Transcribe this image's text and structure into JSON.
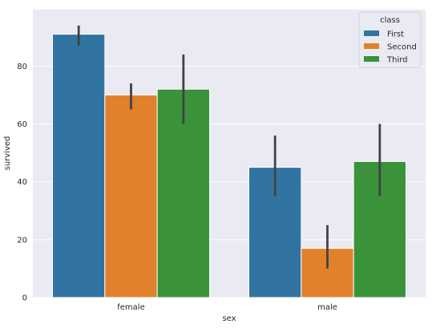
{
  "chart_data": {
    "type": "bar",
    "title": "",
    "xlabel": "sex",
    "ylabel": "survived",
    "categories": [
      "female",
      "male"
    ],
    "series": [
      {
        "name": "First",
        "color": "#3274a1",
        "values": [
          91,
          45
        ],
        "err_low": [
          87,
          35
        ],
        "err_high": [
          94,
          56
        ]
      },
      {
        "name": "Second",
        "color": "#e1812c",
        "values": [
          70,
          17
        ],
        "err_low": [
          65,
          10
        ],
        "err_high": [
          74,
          25
        ]
      },
      {
        "name": "Third",
        "color": "#3a923a",
        "values": [
          72,
          47
        ],
        "err_low": [
          60,
          35
        ],
        "err_high": [
          84,
          60
        ]
      }
    ],
    "ylim": [
      0,
      99.5
    ],
    "yticks": [
      0,
      20,
      40,
      60,
      80
    ],
    "grid": true,
    "legend": {
      "title": "class",
      "placement": "top-right"
    },
    "background": "#eaeaf2",
    "errorbar_color": "#424242"
  }
}
